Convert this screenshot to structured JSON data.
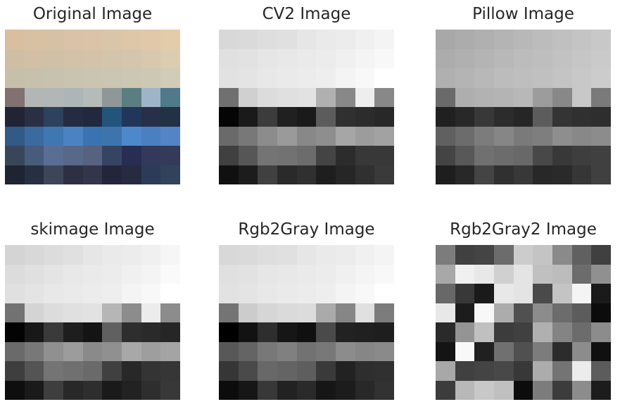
{
  "panels": [
    {
      "title": "Original Image",
      "cols": 9,
      "rows": 8,
      "pixels": [
        [
          "#d9bfa0",
          "#d8c0a3",
          "#d6c1a4",
          "#d9c2a6",
          "#dac3a7",
          "#dac5a9",
          "#dec6a8",
          "#e1c8a9",
          "#e3cca9"
        ],
        [
          "#d0bea4",
          "#d2bfa6",
          "#d0c0a7",
          "#d3c2a8",
          "#d4c3aa",
          "#d5c4ac",
          "#d6c5ae",
          "#d9c7ae",
          "#dccdb0"
        ],
        [
          "#c6bfa9",
          "#c7c1ab",
          "#c7c2ad",
          "#c9c4af",
          "#cac5b0",
          "#cbc6b2",
          "#ccc7b3",
          "#cdc8b4",
          "#d1ccb8"
        ],
        [
          "#817170",
          "#b2b7b5",
          "#b1b7b6",
          "#adb6b7",
          "#b4bbb8",
          "#8f9799",
          "#5a7e82",
          "#9db5c7",
          "#4e7a8a"
        ],
        [
          "#222436",
          "#2b2f44",
          "#2e415d",
          "#252c42",
          "#22283f",
          "#23557a",
          "#22365a",
          "#273048",
          "#223143"
        ],
        [
          "#325a86",
          "#3b6a9e",
          "#3f77b3",
          "#4a83c4",
          "#3a73b2",
          "#3d74ae",
          "#4d88cb",
          "#4a80c1",
          "#5384c6"
        ],
        [
          "#39465a",
          "#475b7a",
          "#5a6e93",
          "#576888",
          "#56627f",
          "#364463",
          "#282e52",
          "#33395a",
          "#343b59"
        ],
        [
          "#1e2433",
          "#273042",
          "#3d4658",
          "#2c3042",
          "#33364a",
          "#23263b",
          "#262b42",
          "#2c3b57",
          "#30435a"
        ]
      ]
    },
    {
      "title": "CV2 Image",
      "cols": 9,
      "rows": 8,
      "pixels": [
        [
          "#d8d8d8",
          "#dadada",
          "#dedede",
          "#e0e0e0",
          "#e6e6e6",
          "#eaeaea",
          "#ececec",
          "#f0f0f0",
          "#f4f4f4"
        ],
        [
          "#e0e0e0",
          "#e2e2e2",
          "#e6e6e6",
          "#e8e8e8",
          "#eaeaea",
          "#ececec",
          "#f0f0f0",
          "#f4f4f4",
          "#f8f8f8"
        ],
        [
          "#e2e2e2",
          "#e4e4e4",
          "#e8e8e8",
          "#eaeaea",
          "#ececec",
          "#eeeeee",
          "#f4f4f4",
          "#f8f8f8",
          "#ffffff"
        ],
        [
          "#707070",
          "#d0d0d0",
          "#dcdcdc",
          "#e0e0e0",
          "#e2e2e2",
          "#b0b0b0",
          "#888888",
          "#eeeeee",
          "#888888"
        ],
        [
          "#050505",
          "#1a1a1a",
          "#3c3c3c",
          "#202020",
          "#1a1a1a",
          "#5c5c5c",
          "#303030",
          "#2c2c2c",
          "#282828"
        ],
        [
          "#6a6a6a",
          "#787878",
          "#8c8c8c",
          "#9a9a9a",
          "#888888",
          "#8e8e8e",
          "#a6a6a6",
          "#9c9c9c",
          "#a2a2a2"
        ],
        [
          "#404040",
          "#565656",
          "#747474",
          "#727272",
          "#6c6c6c",
          "#444444",
          "#2c2c2c",
          "#383838",
          "#383838"
        ],
        [
          "#101010",
          "#1c1c1c",
          "#404040",
          "#2a2a2a",
          "#303030",
          "#1e1e1e",
          "#262626",
          "#303030",
          "#3a3a3a"
        ]
      ]
    },
    {
      "title": "Pillow Image",
      "cols": 9,
      "rows": 8,
      "pixels": [
        [
          "#a8a8a8",
          "#acacac",
          "#b0b0b0",
          "#b4b4b4",
          "#b8b8b8",
          "#bcbcbc",
          "#c0c0c0",
          "#c4c4c4",
          "#c8c8c8"
        ],
        [
          "#acacac",
          "#b0b0b0",
          "#b4b4b4",
          "#b8b8b8",
          "#bcbcbc",
          "#bebebe",
          "#c2c2c2",
          "#c6c6c6",
          "#cacaca"
        ],
        [
          "#b0b0b0",
          "#b4b4b4",
          "#b8b8b8",
          "#bcbcbc",
          "#bebebe",
          "#c0c0c0",
          "#c4c4c4",
          "#c8c8c8",
          "#cccccc"
        ],
        [
          "#6a6a6a",
          "#aeaeae",
          "#b2b2b2",
          "#b4b4b4",
          "#b8b8b8",
          "#9c9c9c",
          "#888888",
          "#c8c8c8",
          "#7a7a7a"
        ],
        [
          "#202020",
          "#282828",
          "#383838",
          "#2c2c2c",
          "#262626",
          "#5c5c5c",
          "#343434",
          "#303030",
          "#2e2e2e"
        ],
        [
          "#606060",
          "#6c6c6c",
          "#7c7c7c",
          "#868686",
          "#7a7a7a",
          "#7e7e7e",
          "#8e8e8e",
          "#888888",
          "#8c8c8c"
        ],
        [
          "#444444",
          "#585858",
          "#707070",
          "#6c6c6c",
          "#686868",
          "#484848",
          "#383838",
          "#3e3e3e",
          "#404040"
        ],
        [
          "#1e1e1e",
          "#282828",
          "#444444",
          "#303030",
          "#383838",
          "#282828",
          "#2a2a2a",
          "#363636",
          "#404040"
        ]
      ]
    },
    {
      "title": "skimage Image",
      "cols": 9,
      "rows": 8,
      "pixels": [
        [
          "#d4d4d4",
          "#d8d8d8",
          "#dcdcdc",
          "#e0e0e0",
          "#e6e6e6",
          "#eaeaea",
          "#ececec",
          "#f0f0f0",
          "#f6f6f6"
        ],
        [
          "#dcdcdc",
          "#e0e0e0",
          "#e4e4e4",
          "#e8e8e8",
          "#eaeaea",
          "#ececec",
          "#f0f0f0",
          "#f4f4f4",
          "#fafafa"
        ],
        [
          "#e0e0e0",
          "#e4e4e4",
          "#e8e8e8",
          "#eaeaea",
          "#ececec",
          "#eeeeee",
          "#f4f4f4",
          "#f8f8f8",
          "#ffffff"
        ],
        [
          "#727272",
          "#d4d4d4",
          "#dcdcdc",
          "#e0e0e0",
          "#e2e2e2",
          "#b6b6b6",
          "#8c8c8c",
          "#ececec",
          "#8c8c8c"
        ],
        [
          "#030303",
          "#181818",
          "#3a3a3a",
          "#1e1e1e",
          "#141414",
          "#606060",
          "#2e2e2e",
          "#2a2a2a",
          "#262626"
        ],
        [
          "#6a6a6a",
          "#787878",
          "#909090",
          "#9c9c9c",
          "#8a8a8a",
          "#909090",
          "#a8a8a8",
          "#9e9e9e",
          "#a4a4a4"
        ],
        [
          "#3e3e3e",
          "#545454",
          "#747474",
          "#707070",
          "#6a6a6a",
          "#404040",
          "#282828",
          "#343434",
          "#363636"
        ],
        [
          "#0e0e0e",
          "#1a1a1a",
          "#3e3e3e",
          "#282828",
          "#2e2e2e",
          "#1a1a1a",
          "#222222",
          "#2e2e2e",
          "#383838"
        ]
      ]
    },
    {
      "title": "Rgb2Gray Image",
      "cols": 9,
      "rows": 8,
      "pixels": [
        [
          "#d8d8d8",
          "#dadada",
          "#dedede",
          "#e0e0e0",
          "#e6e6e6",
          "#eaeaea",
          "#ececec",
          "#f0f0f0",
          "#f4f4f4"
        ],
        [
          "#e0e0e0",
          "#e2e2e2",
          "#e6e6e6",
          "#e8e8e8",
          "#eaeaea",
          "#ececec",
          "#f0f0f0",
          "#f4f4f4",
          "#f8f8f8"
        ],
        [
          "#e2e2e2",
          "#e4e4e4",
          "#e8e8e8",
          "#eaeaea",
          "#ececec",
          "#eeeeee",
          "#f4f4f4",
          "#f8f8f8",
          "#ffffff"
        ],
        [
          "#747474",
          "#cccccc",
          "#d6d6d6",
          "#dadada",
          "#dcdcdc",
          "#aaaaaa",
          "#868686",
          "#e0e0e0",
          "#7c7c7c"
        ],
        [
          "#000000",
          "#121212",
          "#2e2e2e",
          "#161616",
          "#101010",
          "#4a4a4a",
          "#222222",
          "#202020",
          "#1e1e1e"
        ],
        [
          "#585858",
          "#646464",
          "#787878",
          "#808080",
          "#727272",
          "#787878",
          "#8c8c8c",
          "#868686",
          "#8a8a8a"
        ],
        [
          "#363636",
          "#4a4a4a",
          "#686868",
          "#646464",
          "#5e5e5e",
          "#3a3a3a",
          "#222222",
          "#2e2e2e",
          "#303030"
        ],
        [
          "#0c0c0c",
          "#161616",
          "#383838",
          "#222222",
          "#2a2a2a",
          "#161616",
          "#1c1c1c",
          "#282828",
          "#323232"
        ]
      ]
    },
    {
      "title": "Rgb2Gray2 Image",
      "cols": 9,
      "rows": 8,
      "pixels": [
        [
          "#7c7c7c",
          "#404040",
          "#444444",
          "#6c6c6c",
          "#cccccc",
          "#c4c4c4",
          "#8a8a8a",
          "#606060",
          "#404040"
        ],
        [
          "#a8a8a8",
          "#f0f0f0",
          "#e8e8e8",
          "#d0d0d0",
          "#e4e4e4",
          "#c0c0c0",
          "#bcbcbc",
          "#6c6c6c",
          "#909090"
        ],
        [
          "#686868",
          "#383838",
          "#1a1a1a",
          "#e8e8e8",
          "#e4e4e4",
          "#4a4a4a",
          "#c4c4c4",
          "#f4f4f4",
          "#1a1a1a"
        ],
        [
          "#e8e8e8",
          "#1c1c1c",
          "#f8f8f8",
          "#acacac",
          "#505050",
          "#8c8c8c",
          "#6c6c6c",
          "#5c5c5c",
          "#0c0c0c"
        ],
        [
          "#2a2a2a",
          "#949494",
          "#c0c0c0",
          "#3c3c3c",
          "#404040",
          "#b0b0b0",
          "#848484",
          "#6c6c6c",
          "#8c8c8c"
        ],
        [
          "#141414",
          "#f8f8f8",
          "#202020",
          "#707070",
          "#505050",
          "#7c7c7c",
          "#2c2c2c",
          "#8c8c8c",
          "#101010"
        ],
        [
          "#a8a8a8",
          "#404040",
          "#444444",
          "#484848",
          "#383838",
          "#acacac",
          "#747474",
          "#ececec",
          "#5c5c5c"
        ],
        [
          "#3c3c3c",
          "#b8b8b8",
          "#c8c8c8",
          "#c0c0c0",
          "#0c0c0c",
          "#7c7c7c",
          "#3c3c3c",
          "#8c8c8c",
          "#1c1c1c"
        ]
      ]
    }
  ]
}
